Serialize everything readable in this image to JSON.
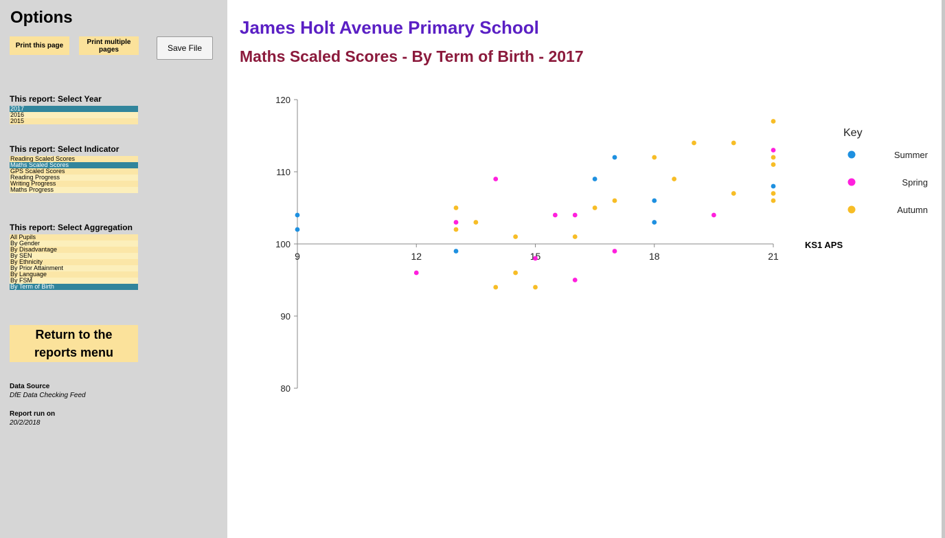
{
  "sidebar": {
    "title": "Options",
    "print_page": "Print this page",
    "print_multiple": "Print multiple pages",
    "save_file": "Save File",
    "year_heading": "This report: Select Year",
    "years": [
      "2017",
      "2016",
      "2015"
    ],
    "selected_year": "2017",
    "indicator_heading": "This report: Select Indicator",
    "indicators": [
      "Reading Scaled Scores",
      "Maths Scaled Scores",
      "GPS Scaled Scores",
      "Reading Progress",
      "Writing Progress",
      "Maths Progress"
    ],
    "selected_indicator": "Maths Scaled Scores",
    "aggregation_heading": "This report: Select Aggregation",
    "aggregations": [
      "All Pupils",
      "By Gender",
      "By Disadvantage",
      "By SEN",
      "By Ethnicity",
      "By Prior Attainment",
      "By Language",
      "By FSM",
      "By Term of Birth"
    ],
    "selected_aggregation": "By Term of Birth",
    "return_button": "Return to the reports menu",
    "data_source_label": "Data Source",
    "data_source_value": "DfE Data Checking Feed",
    "report_run_label": "Report run on",
    "report_run_value": "20/2/2018"
  },
  "header": {
    "school": "James Holt Avenue Primary School",
    "report_title": "Maths Scaled Scores - By Term of Birth - 2017"
  },
  "colors": {
    "summer": "#1e90e0",
    "spring": "#ff1fdd",
    "autumn": "#f7bd26",
    "selected": "#31859c",
    "button": "#fbe29b"
  },
  "chart_data": {
    "type": "scatter",
    "title": "",
    "xlabel": "KS1 APS",
    "ylabel": "",
    "xlim": [
      9,
      21
    ],
    "ylim": [
      80,
      120
    ],
    "xticks": [
      9,
      12,
      15,
      18,
      21
    ],
    "yticks": [
      80,
      90,
      100,
      110,
      120
    ],
    "x_axis_crosses_at_y": 100,
    "legend_title": "Key",
    "legend_position": "right",
    "grid": false,
    "series": [
      {
        "name": "Summer",
        "color": "#1e90e0",
        "points": [
          [
            9,
            104
          ],
          [
            9,
            102
          ],
          [
            13,
            99
          ],
          [
            16.5,
            109
          ],
          [
            17,
            112
          ],
          [
            18,
            106
          ],
          [
            18,
            103
          ],
          [
            21,
            108
          ]
        ]
      },
      {
        "name": "Spring",
        "color": "#ff1fdd",
        "points": [
          [
            12,
            96
          ],
          [
            13,
            103
          ],
          [
            14,
            109
          ],
          [
            15,
            98
          ],
          [
            15.5,
            104
          ],
          [
            16,
            104
          ],
          [
            16,
            95
          ],
          [
            17,
            99
          ],
          [
            19.5,
            104
          ],
          [
            21,
            113
          ]
        ]
      },
      {
        "name": "Autumn",
        "color": "#f7bd26",
        "points": [
          [
            13,
            105
          ],
          [
            13,
            102
          ],
          [
            13.5,
            103
          ],
          [
            14,
            94
          ],
          [
            14.5,
            101
          ],
          [
            14.5,
            96
          ],
          [
            15,
            94
          ],
          [
            16,
            101
          ],
          [
            16.5,
            105
          ],
          [
            17,
            106
          ],
          [
            18,
            112
          ],
          [
            18.5,
            109
          ],
          [
            19,
            114
          ],
          [
            20,
            114
          ],
          [
            20,
            107
          ],
          [
            21,
            117
          ],
          [
            21,
            112
          ],
          [
            21,
            111
          ],
          [
            21,
            107
          ],
          [
            21,
            106
          ]
        ]
      }
    ]
  }
}
